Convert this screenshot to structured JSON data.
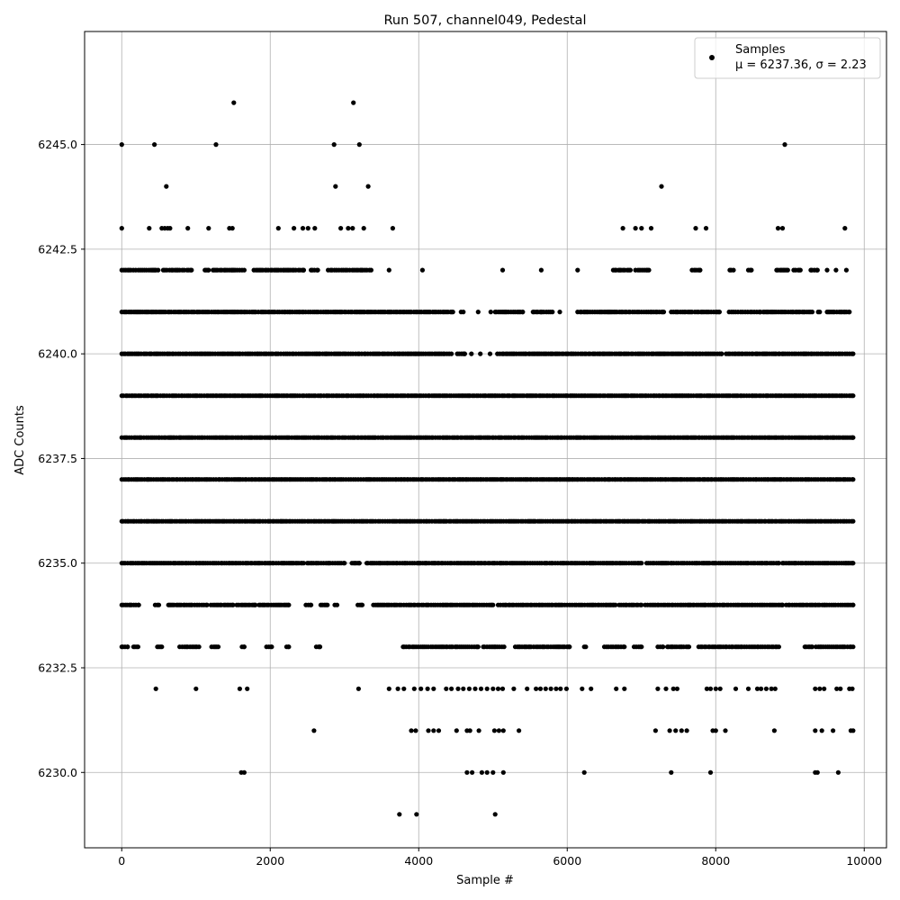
{
  "chart_data": {
    "type": "scatter",
    "title": "Run 507, channel049, Pedestal",
    "xlabel": "Sample #",
    "ylabel": "ADC Counts",
    "xlim": [
      -500,
      10300
    ],
    "ylim": [
      6228.2,
      6247.7
    ],
    "xticks": [
      0,
      2000,
      4000,
      6000,
      8000,
      10000
    ],
    "xtick_labels": [
      "0",
      "2000",
      "4000",
      "6000",
      "8000",
      "10000"
    ],
    "yticks": [
      6230.0,
      6232.5,
      6235.0,
      6237.5,
      6240.0,
      6242.5,
      6245.0
    ],
    "ytick_labels": [
      "6230.0",
      "6232.5",
      "6235.0",
      "6237.5",
      "6240.0",
      "6242.5",
      "6245.0"
    ],
    "grid": true,
    "legend": {
      "placement": "top-right",
      "entries": [
        {
          "label": "Samples",
          "stats": "μ = 6237.36, σ = 2.23"
        }
      ]
    },
    "series": [
      {
        "name": "Samples",
        "color": "#000000",
        "n_samples": 9850,
        "points": [
          [
            0,
            6245
          ],
          [
            440,
            6245
          ],
          [
            1270,
            6245
          ],
          [
            2860,
            6245
          ],
          [
            3200,
            6245
          ],
          [
            8930,
            6245
          ],
          [
            1510,
            6246
          ],
          [
            3120,
            6246
          ],
          [
            600,
            6244
          ],
          [
            2880,
            6244
          ],
          [
            3320,
            6244
          ],
          [
            7270,
            6244
          ],
          [
            0,
            6243
          ],
          [
            370,
            6243
          ],
          [
            540,
            6243
          ],
          [
            580,
            6243
          ],
          [
            620,
            6243
          ],
          [
            650,
            6243
          ],
          [
            890,
            6243
          ],
          [
            1170,
            6243
          ],
          [
            1450,
            6243
          ],
          [
            1490,
            6243
          ],
          [
            2110,
            6243
          ],
          [
            2320,
            6243
          ],
          [
            2440,
            6243
          ],
          [
            2510,
            6243
          ],
          [
            2600,
            6243
          ],
          [
            2950,
            6243
          ],
          [
            3050,
            6243
          ],
          [
            3110,
            6243
          ],
          [
            3260,
            6243
          ],
          [
            3650,
            6243
          ],
          [
            6750,
            6243
          ],
          [
            6920,
            6243
          ],
          [
            7000,
            6243
          ],
          [
            7130,
            6243
          ],
          [
            7730,
            6243
          ],
          [
            7870,
            6243
          ],
          [
            8840,
            6243
          ],
          [
            8900,
            6243
          ],
          [
            9740,
            6243
          ],
          [
            0,
            6242
          ],
          [
            3600,
            6242
          ],
          [
            4050,
            6242
          ],
          [
            5130,
            6242
          ],
          [
            5650,
            6242
          ],
          [
            6140,
            6242
          ],
          [
            9500,
            6242
          ],
          [
            9620,
            6242
          ],
          [
            9760,
            6242
          ],
          [
            4800,
            6241
          ],
          [
            4970,
            6241
          ],
          [
            5650,
            6241
          ],
          [
            5900,
            6241
          ],
          [
            4710,
            6240
          ],
          [
            4830,
            6240
          ],
          [
            4960,
            6240
          ],
          [
            6230,
            6230
          ],
          [
            7400,
            6230
          ],
          [
            7930,
            6230
          ],
          [
            9340,
            6230
          ],
          [
            9650,
            6230
          ],
          [
            1610,
            6230
          ],
          [
            1650,
            6230
          ],
          [
            4650,
            6230
          ],
          [
            4720,
            6230
          ],
          [
            4850,
            6230
          ],
          [
            4920,
            6230
          ],
          [
            5000,
            6230
          ],
          [
            5140,
            6230
          ],
          [
            9370,
            6230
          ],
          [
            3740,
            6229
          ],
          [
            3970,
            6229
          ],
          [
            5030,
            6229
          ],
          [
            2590,
            6231
          ],
          [
            3900,
            6231
          ],
          [
            3960,
            6231
          ],
          [
            4130,
            6231
          ],
          [
            4200,
            6231
          ],
          [
            4270,
            6231
          ],
          [
            4510,
            6231
          ],
          [
            4650,
            6231
          ],
          [
            4690,
            6231
          ],
          [
            4810,
            6231
          ],
          [
            5020,
            6231
          ],
          [
            5080,
            6231
          ],
          [
            5140,
            6231
          ],
          [
            5350,
            6231
          ],
          [
            7190,
            6231
          ],
          [
            7380,
            6231
          ],
          [
            7460,
            6231
          ],
          [
            7540,
            6231
          ],
          [
            7610,
            6231
          ],
          [
            7960,
            6231
          ],
          [
            8000,
            6231
          ],
          [
            8130,
            6231
          ],
          [
            8790,
            6231
          ],
          [
            9340,
            6231
          ],
          [
            9430,
            6231
          ],
          [
            9580,
            6231
          ],
          [
            9820,
            6231
          ],
          [
            9850,
            6231
          ],
          [
            460,
            6232
          ],
          [
            1000,
            6232
          ],
          [
            1590,
            6232
          ],
          [
            1690,
            6232
          ],
          [
            3190,
            6232
          ],
          [
            3600,
            6232
          ],
          [
            3720,
            6232
          ],
          [
            3800,
            6232
          ],
          [
            3940,
            6232
          ],
          [
            4030,
            6232
          ],
          [
            4120,
            6232
          ],
          [
            4200,
            6232
          ],
          [
            4370,
            6232
          ],
          [
            4440,
            6232
          ],
          [
            4530,
            6232
          ],
          [
            4600,
            6232
          ],
          [
            4680,
            6232
          ],
          [
            4760,
            6232
          ],
          [
            4840,
            6232
          ],
          [
            4920,
            6232
          ],
          [
            5000,
            6232
          ],
          [
            5070,
            6232
          ],
          [
            5130,
            6232
          ],
          [
            5280,
            6232
          ],
          [
            5460,
            6232
          ],
          [
            5580,
            6232
          ],
          [
            5640,
            6232
          ],
          [
            5710,
            6232
          ],
          [
            5780,
            6232
          ],
          [
            5850,
            6232
          ],
          [
            5910,
            6232
          ],
          [
            5990,
            6232
          ],
          [
            6200,
            6232
          ],
          [
            6320,
            6232
          ],
          [
            6660,
            6232
          ],
          [
            6770,
            6232
          ],
          [
            7220,
            6232
          ],
          [
            7330,
            6232
          ],
          [
            7430,
            6232
          ],
          [
            7480,
            6232
          ],
          [
            7880,
            6232
          ],
          [
            7930,
            6232
          ],
          [
            8000,
            6232
          ],
          [
            8060,
            6232
          ],
          [
            8270,
            6232
          ],
          [
            8440,
            6232
          ],
          [
            8560,
            6232
          ],
          [
            8610,
            6232
          ],
          [
            8680,
            6232
          ],
          [
            8750,
            6232
          ],
          [
            8800,
            6232
          ],
          [
            9340,
            6232
          ],
          [
            9400,
            6232
          ],
          [
            9460,
            6232
          ],
          [
            9630,
            6232
          ],
          [
            9680,
            6232
          ],
          [
            9800,
            6232
          ],
          [
            9840,
            6232
          ]
        ],
        "dense_rows": [
          {
            "y": 6242,
            "segments": [
              [
                30,
                490
              ],
              [
                560,
                840
              ],
              [
                880,
                940
              ],
              [
                1120,
                1170
              ],
              [
                1230,
                1650
              ],
              [
                1780,
                2450
              ],
              [
                2550,
                2640
              ],
              [
                2780,
                3360
              ],
              [
                6620,
                6850
              ],
              [
                6920,
                7100
              ],
              [
                7680,
                7790
              ],
              [
                8190,
                8240
              ],
              [
                8440,
                8480
              ],
              [
                8820,
                8970
              ],
              [
                9050,
                9140
              ],
              [
                9280,
                9370
              ]
            ]
          },
          {
            "y": 6241,
            "segments": [
              [
                0,
                4460
              ],
              [
                4570,
                4600
              ],
              [
                5030,
                5400
              ],
              [
                5540,
                5800
              ],
              [
                6140,
                7300
              ],
              [
                7400,
                7680
              ],
              [
                7720,
                8050
              ],
              [
                8180,
                8600
              ],
              [
                8640,
                9300
              ],
              [
                9380,
                9400
              ],
              [
                9500,
                9800
              ]
            ]
          },
          {
            "y": 6240,
            "segments": [
              [
                0,
                4440
              ],
              [
                4520,
                4620
              ],
              [
                5060,
                8080
              ],
              [
                8140,
                9850
              ]
            ]
          },
          {
            "y": 6239,
            "segments": [
              [
                0,
                9850
              ]
            ]
          },
          {
            "y": 6238,
            "segments": [
              [
                0,
                9850
              ]
            ]
          },
          {
            "y": 6237,
            "segments": [
              [
                0,
                9850
              ]
            ]
          },
          {
            "y": 6236,
            "segments": [
              [
                0,
                9850
              ]
            ]
          },
          {
            "y": 6235,
            "segments": [
              [
                0,
                2450
              ],
              [
                2500,
                3000
              ],
              [
                3100,
                3200
              ],
              [
                3300,
                7000
              ],
              [
                7070,
                8850
              ],
              [
                8900,
                9850
              ]
            ]
          },
          {
            "y": 6234,
            "segments": [
              [
                0,
                230
              ],
              [
                450,
                500
              ],
              [
                630,
                1150
              ],
              [
                1200,
                1500
              ],
              [
                1550,
                1800
              ],
              [
                1850,
                2250
              ],
              [
                2480,
                2550
              ],
              [
                2680,
                2770
              ],
              [
                2870,
                2900
              ],
              [
                3180,
                3240
              ],
              [
                3390,
                5000
              ],
              [
                5070,
                6650
              ],
              [
                6700,
                7000
              ],
              [
                7050,
                8900
              ],
              [
                8950,
                9850
              ]
            ]
          },
          {
            "y": 6233,
            "segments": [
              [
                0,
                80
              ],
              [
                160,
                220
              ],
              [
                480,
                540
              ],
              [
                780,
                1040
              ],
              [
                1210,
                1300
              ],
              [
                1620,
                1650
              ],
              [
                1950,
                2020
              ],
              [
                2220,
                2250
              ],
              [
                2620,
                2670
              ],
              [
                3790,
                4800
              ],
              [
                4870,
                5150
              ],
              [
                5300,
                6030
              ],
              [
                6230,
                6250
              ],
              [
                6500,
                6770
              ],
              [
                6900,
                7000
              ],
              [
                7220,
                7290
              ],
              [
                7350,
                7640
              ],
              [
                7770,
                8850
              ],
              [
                9200,
                9300
              ],
              [
                9350,
                9850
              ]
            ]
          }
        ]
      }
    ]
  }
}
